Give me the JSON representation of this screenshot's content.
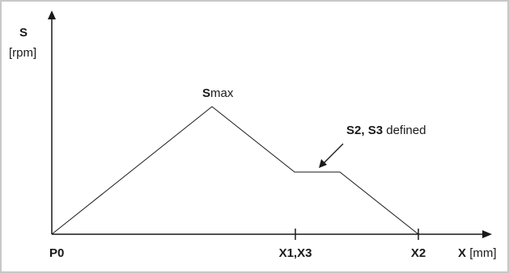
{
  "y_axis": {
    "symbol": "S",
    "unit": "[rpm]"
  },
  "x_axis": {
    "symbol": "X",
    "unit": "[mm]"
  },
  "x_ticks": {
    "origin": "P0",
    "mid": "X1,X3",
    "end": "X2"
  },
  "peak_label": {
    "prefix": "S",
    "suffix": "max"
  },
  "annotation": {
    "part1": "S2",
    "sep": ", ",
    "part2": "S3",
    "rest": " defined"
  },
  "colors": {
    "line": "#1a1a1a",
    "frame": "#c8c8c8"
  }
}
